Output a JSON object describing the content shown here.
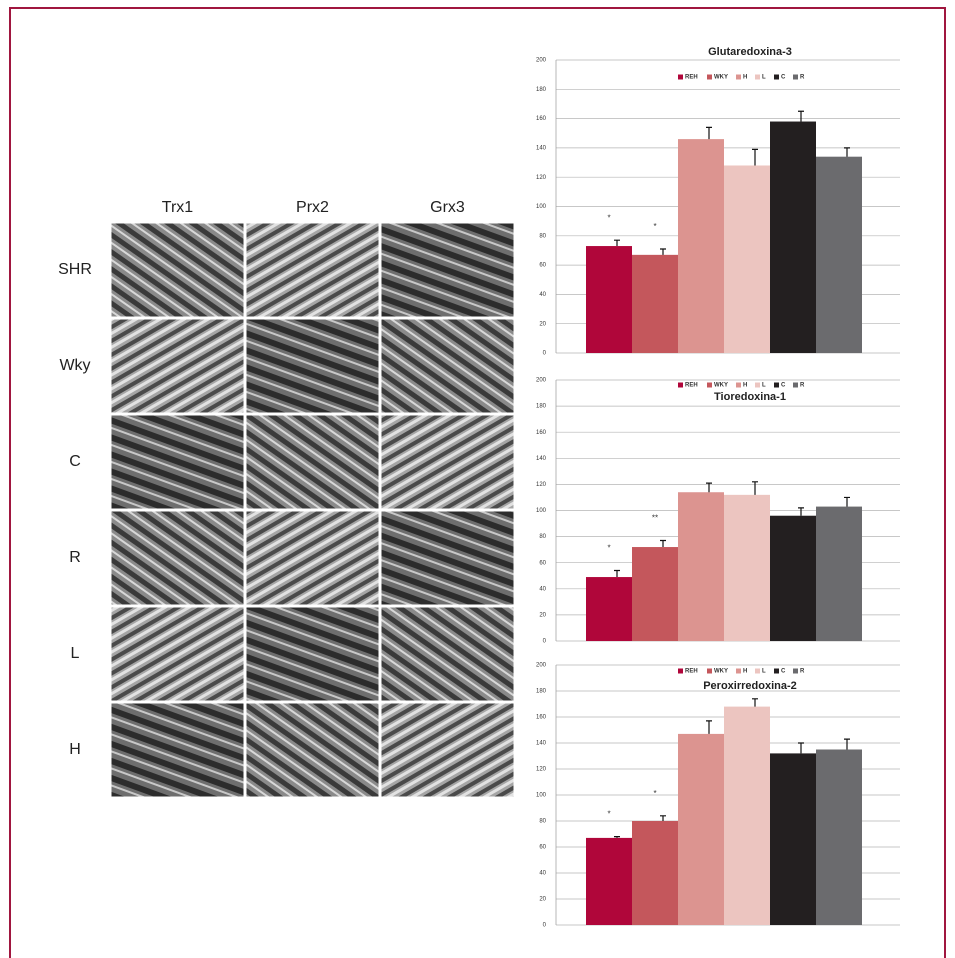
{
  "panel": {
    "columns": [
      "Trx1",
      "Prx2",
      "Grx3"
    ],
    "rows": [
      "SHR",
      "Wky",
      "C",
      "R",
      "L",
      "H"
    ]
  },
  "chart_data": [
    {
      "type": "bar",
      "title": "Glutaredoxina-3",
      "categories": [
        null
      ],
      "ylim": [
        0,
        200
      ],
      "yticks": [
        0,
        20,
        40,
        60,
        80,
        100,
        120,
        140,
        160,
        180,
        200
      ],
      "grid": true,
      "series": [
        {
          "name": "REH",
          "color": "#b0063a",
          "values": [
            73
          ],
          "errors": [
            4
          ],
          "annotation": "*"
        },
        {
          "name": "WKY",
          "color": "#c4575c",
          "values": [
            67
          ],
          "errors": [
            4
          ],
          "annotation": "*"
        },
        {
          "name": "H",
          "color": "#dc9490",
          "values": [
            146
          ],
          "errors": [
            8
          ]
        },
        {
          "name": "L",
          "color": "#ecc5c0",
          "values": [
            128
          ],
          "errors": [
            11
          ]
        },
        {
          "name": "C",
          "color": "#231f20",
          "values": [
            158
          ],
          "errors": [
            7
          ]
        },
        {
          "name": "R",
          "color": "#6b6b6e",
          "values": [
            134
          ],
          "errors": [
            6
          ]
        }
      ]
    },
    {
      "type": "bar",
      "title": "Tioredoxina-1",
      "categories": [
        null
      ],
      "ylim": [
        0,
        200
      ],
      "yticks": [
        0,
        20,
        40,
        60,
        80,
        100,
        120,
        140,
        160,
        180,
        200
      ],
      "grid": true,
      "series": [
        {
          "name": "REH",
          "color": "#b0063a",
          "values": [
            49
          ],
          "errors": [
            5
          ],
          "annotation": "*"
        },
        {
          "name": "WKY",
          "color": "#c4575c",
          "values": [
            72
          ],
          "errors": [
            5
          ],
          "annotation": "**"
        },
        {
          "name": "H",
          "color": "#dc9490",
          "values": [
            114
          ],
          "errors": [
            7
          ]
        },
        {
          "name": "L",
          "color": "#ecc5c0",
          "values": [
            112
          ],
          "errors": [
            10
          ]
        },
        {
          "name": "C",
          "color": "#231f20",
          "values": [
            96
          ],
          "errors": [
            6
          ]
        },
        {
          "name": "R",
          "color": "#6b6b6e",
          "values": [
            103
          ],
          "errors": [
            7
          ]
        }
      ]
    },
    {
      "type": "bar",
      "title": "Peroxirredoxina-2",
      "categories": [
        null
      ],
      "ylim": [
        0,
        200
      ],
      "yticks": [
        0,
        20,
        40,
        60,
        80,
        100,
        120,
        140,
        160,
        180,
        200
      ],
      "grid": true,
      "series": [
        {
          "name": "REH",
          "color": "#b0063a",
          "values": [
            67
          ],
          "errors": [
            1
          ],
          "annotation": "*"
        },
        {
          "name": "WKY",
          "color": "#c4575c",
          "values": [
            80
          ],
          "errors": [
            4
          ],
          "annotation": "*"
        },
        {
          "name": "H",
          "color": "#dc9490",
          "values": [
            147
          ],
          "errors": [
            10
          ]
        },
        {
          "name": "L",
          "color": "#ecc5c0",
          "values": [
            168
          ],
          "errors": [
            6
          ]
        },
        {
          "name": "C",
          "color": "#231f20",
          "values": [
            132
          ],
          "errors": [
            8
          ]
        },
        {
          "name": "R",
          "color": "#6b6b6e",
          "values": [
            135
          ],
          "errors": [
            8
          ]
        }
      ]
    }
  ]
}
